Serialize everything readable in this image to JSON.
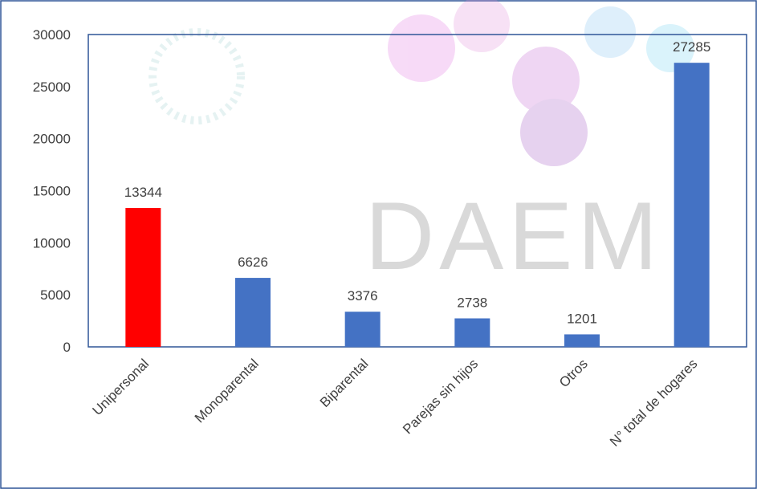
{
  "chart_data": {
    "type": "bar",
    "watermark": "DAEM",
    "categories": [
      "Unipersonal",
      "Monoparental",
      "Biparental",
      "Parejas sin hijos",
      "Otros",
      "N° total de hogares"
    ],
    "values": [
      13344,
      6626,
      3376,
      2738,
      1201,
      27285
    ],
    "colors": [
      "#ff0000",
      "#4472c4",
      "#4472c4",
      "#4472c4",
      "#4472c4",
      "#4472c4"
    ],
    "ylim": [
      0,
      30000
    ],
    "yticks": [
      0,
      5000,
      10000,
      15000,
      20000,
      25000,
      30000
    ],
    "grid": false
  }
}
